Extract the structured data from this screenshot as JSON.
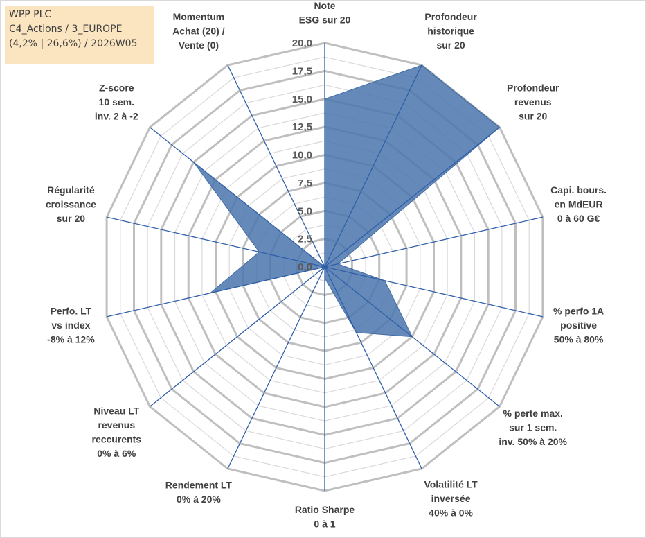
{
  "title_box": {
    "line1": "WPP PLC",
    "line2": "C4_Actions / 3_EUROPE",
    "line3": "(4,2% | 26,6%) / 2026W05"
  },
  "colors": {
    "fill": "#4a76ad",
    "spoke": "#2f5fa8",
    "grid_major": "#bfbfbf",
    "grid_minor": "#d9d9d9",
    "label": "#404040",
    "title_bg": "#fbe5c0"
  },
  "chart_data": {
    "type": "radar",
    "rlim": [
      0,
      20
    ],
    "tick_labels": [
      "0,0",
      "2,5",
      "5,0",
      "7,5",
      "10,0",
      "12,5",
      "15,0",
      "17,5",
      "20,0"
    ],
    "grid": true,
    "axes": [
      {
        "label": [
          "Note",
          "ESG sur 20"
        ],
        "value": 15.0
      },
      {
        "label": [
          "Profondeur",
          "historique",
          "sur 20"
        ],
        "value": 20.0
      },
      {
        "label": [
          "Profondeur",
          "revenus",
          "sur 20"
        ],
        "value": 20.0
      },
      {
        "label": [
          "Capi. bours.",
          "en MdEUR",
          "0 à 60 G€"
        ],
        "value": 1.2
      },
      {
        "label": [
          "% perfo 1A",
          "positive",
          "50% à 80%"
        ],
        "value": 5.5
      },
      {
        "label": [
          "% perte max.",
          "sur 1 sem.",
          "inv. 50% à 20%"
        ],
        "value": 10.0
      },
      {
        "label": [
          "Volatilité LT",
          "inversée",
          "40% à 0%"
        ],
        "value": 6.5
      },
      {
        "label": [
          "Ratio Sharpe",
          "0 à 1"
        ],
        "value": 1.0
      },
      {
        "label": [
          "Rendement LT",
          "0% à 20%"
        ],
        "value": 0.0
      },
      {
        "label": [
          "Niveau LT",
          "revenus",
          "reccurents",
          "0% à 6%"
        ],
        "value": 0.0
      },
      {
        "label": [
          "Perfo. LT",
          "vs index",
          "-8% à 12%"
        ],
        "value": 10.5
      },
      {
        "label": [
          "Régularité",
          "croissance",
          "sur 20"
        ],
        "value": 6.0
      },
      {
        "label": [
          "Z-score",
          "10 sem.",
          "inv. 2 à -2"
        ],
        "value": 15.0
      },
      {
        "label": [
          "Momentum",
          "Achat (20) /",
          "Vente (0)"
        ],
        "value": 0.0
      }
    ]
  }
}
